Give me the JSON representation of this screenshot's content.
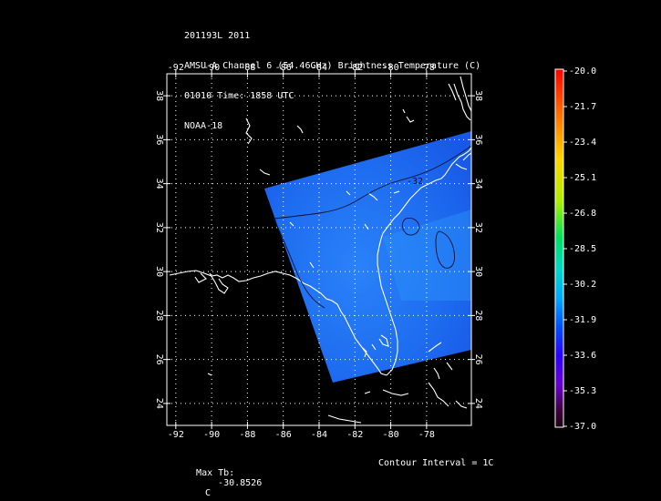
{
  "header": {
    "line1": "201193L 2011",
    "line2": "AMSU-A Channel 6 (54.46GHz) Brightness Temperature (C)",
    "line3": "01010 Time: 1858 UTC",
    "line4": "NOAA-18"
  },
  "map": {
    "lon_ticks": [
      "-92",
      "-90",
      "-88",
      "-86",
      "-84",
      "-82",
      "-80",
      "-78"
    ],
    "lat_ticks": [
      "24",
      "26",
      "28",
      "30",
      "32",
      "34",
      "36",
      "38"
    ],
    "lon_range": [
      -92.5,
      -75.5
    ],
    "lat_range": [
      23.0,
      39.0
    ],
    "contour_label": "-32",
    "swath_color": "#1f6cf0",
    "coastline_color": "#ffffff",
    "grid_color": "#ffffff"
  },
  "colorbar": {
    "labels": [
      "-20.0",
      "-21.7",
      "-23.4",
      "-25.1",
      "-26.8",
      "-28.5",
      "-30.2",
      "-31.9",
      "-33.6",
      "-35.3",
      "-37.0"
    ]
  },
  "footer": {
    "max_tb_label": "Max Tb:",
    "max_tb_value": "-30.8526",
    "max_tb_unit": "C",
    "contour_interval": "Contour Interval = 1C"
  }
}
